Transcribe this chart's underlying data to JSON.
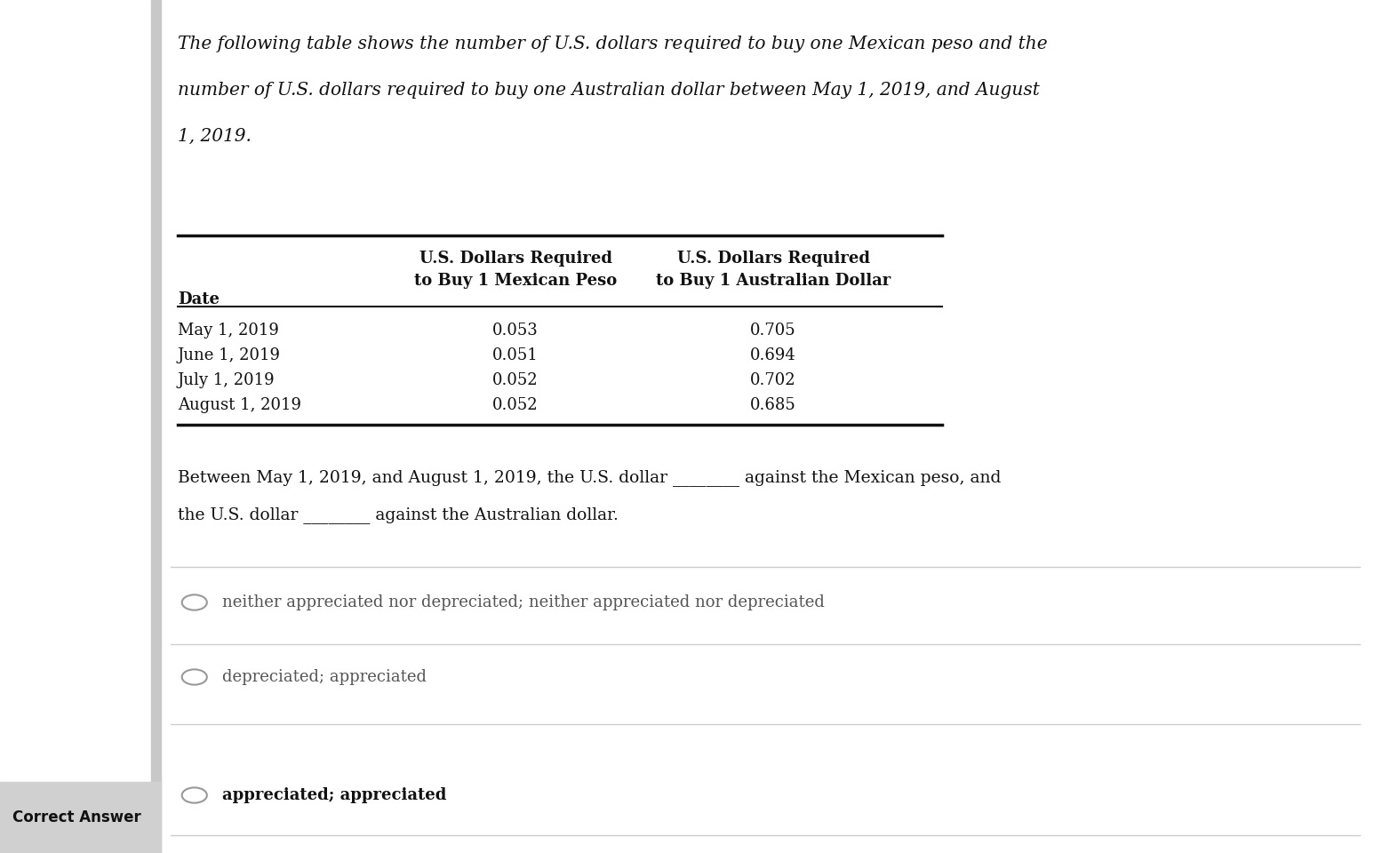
{
  "title_lines": [
    "The following table shows the number of U.S. dollars required to buy one Mexican peso and the",
    "number of U.S. dollars required to buy one Australian dollar between May 1, 2019, and August",
    "1, 2019."
  ],
  "col_headers": [
    "Date",
    "U.S. Dollars Required\nto Buy 1 Mexican Peso",
    "U.S. Dollars Required\nto Buy 1 Australian Dollar"
  ],
  "rows": [
    [
      "May 1, 2019",
      "0.053",
      "0.705"
    ],
    [
      "June 1, 2019",
      "0.051",
      "0.694"
    ],
    [
      "July 1, 2019",
      "0.052",
      "0.702"
    ],
    [
      "August 1, 2019",
      "0.052",
      "0.685"
    ]
  ],
  "question_line1": "Between May 1, 2019, and August 1, 2019, the U.S. dollar ________ against the Mexican peso, and",
  "question_line2": "the U.S. dollar ________ against the Australian dollar.",
  "options": [
    "neither appreciated nor depreciated; neither appreciated nor depreciated",
    "depreciated; appreciated",
    "appreciated; appreciated"
  ],
  "correct_answer_label": "Correct Answer",
  "correct_option_index": 2,
  "bg_color": "#ffffff",
  "text_color": "#111111",
  "option_text_color": "#555555",
  "divider_color": "#cccccc",
  "sidebar_color": "#c8c8c8",
  "correct_answer_bg": "#d0d0d0",
  "title_fontsize": 14.5,
  "table_fontsize": 13.0,
  "question_fontsize": 13.5,
  "option_fontsize": 13.0
}
